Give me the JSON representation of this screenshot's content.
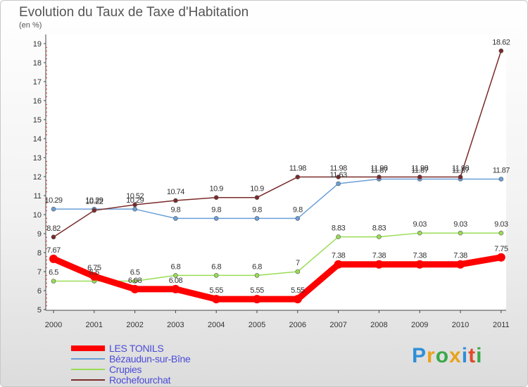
{
  "chart_data": {
    "type": "line",
    "title": "Evolution du Taux de Taxe d'Habitation",
    "subtitle": "(en %)",
    "xlabel": "",
    "ylabel": "",
    "categories": [
      "2000",
      "2001",
      "2002",
      "2003",
      "2004",
      "2005",
      "2006",
      "2007",
      "2008",
      "2009",
      "2010",
      "2011"
    ],
    "ylim": [
      5,
      19
    ],
    "yticks": [
      5,
      6,
      7,
      8,
      9,
      10,
      11,
      12,
      13,
      14,
      15,
      16,
      17,
      18,
      19
    ],
    "grid": false,
    "legend_position": "bottom-left",
    "series": [
      {
        "name": "LES TONILS",
        "color": "#ff0000",
        "values": [
          7.67,
          6.75,
          6.08,
          6.08,
          5.55,
          5.55,
          5.55,
          7.38,
          7.38,
          7.38,
          7.38,
          7.75
        ],
        "labels": [
          "7.67",
          "6.75",
          "6.08",
          "6.08",
          "5.55",
          "5.55",
          "5.55",
          "7.38",
          "7.38",
          "7.38",
          "7.38",
          "7.75"
        ]
      },
      {
        "name": "Bézaudun-sur-Bîne",
        "color": "#6a9fd8",
        "values": [
          10.29,
          10.29,
          10.29,
          9.8,
          9.8,
          9.8,
          9.8,
          11.63,
          11.87,
          11.87,
          11.87,
          11.87
        ],
        "labels": [
          "10.29",
          "10.29",
          "10.29",
          "9.8",
          "9.8",
          "9.8",
          "9.8",
          "11.63",
          "11.87",
          "11.87",
          "11.87",
          "11.87"
        ]
      },
      {
        "name": "Crupies",
        "color": "#99dd55",
        "values": [
          6.5,
          6.5,
          6.5,
          6.8,
          6.8,
          6.8,
          7,
          8.83,
          8.83,
          9.03,
          9.03,
          9.03
        ],
        "labels": [
          "6.5",
          "6.5",
          "6.5",
          "6.8",
          "6.8",
          "6.8",
          "7",
          "8.83",
          "8.83",
          "9.03",
          "9.03",
          "9.03"
        ]
      },
      {
        "name": "Rochefourchat",
        "color": "#7a2a2a",
        "values": [
          8.82,
          10.22,
          10.52,
          10.74,
          10.9,
          10.9,
          11.98,
          11.98,
          11.98,
          11.98,
          11.98,
          18.62
        ],
        "labels": [
          "8.82",
          "10.22",
          "10.52",
          "10.74",
          "10.9",
          "10.9",
          "11.98",
          "11.98",
          "11.98",
          "11.98",
          "11.98",
          "18.62"
        ]
      }
    ]
  },
  "branding": {
    "logo_text": "Proxiti"
  }
}
